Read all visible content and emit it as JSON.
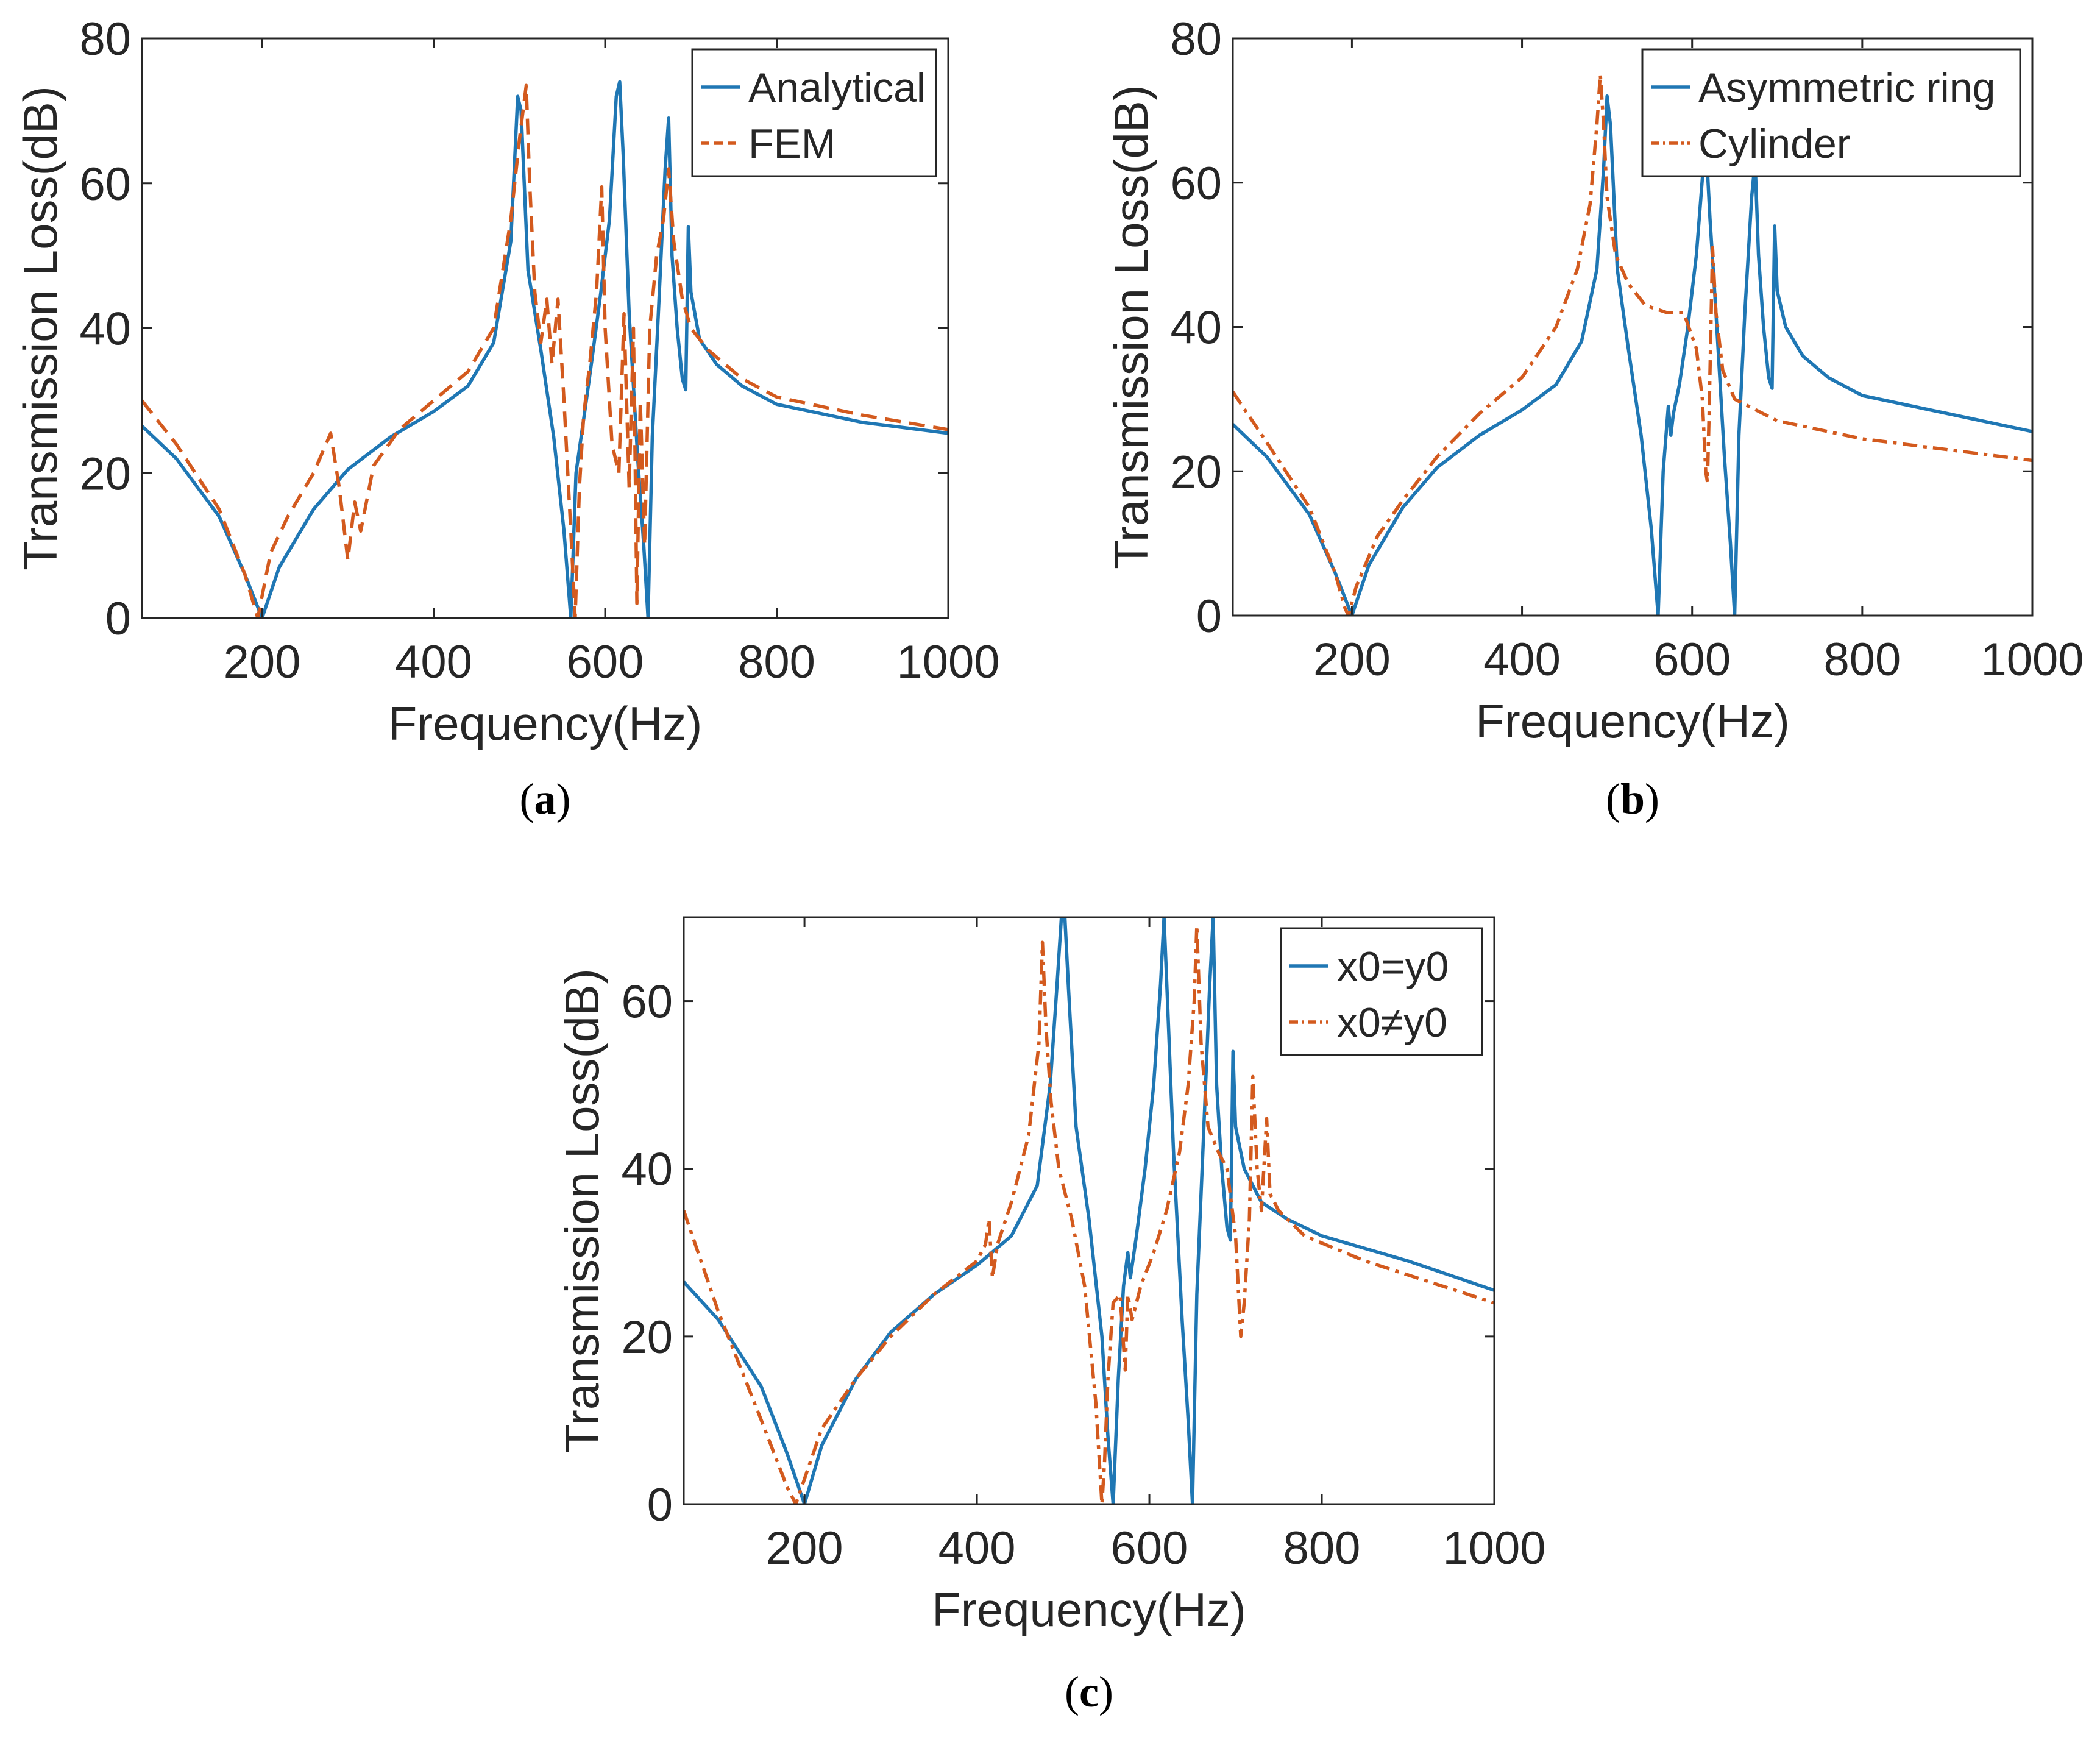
{
  "figure": {
    "panel_labels": [
      "(a)",
      "(b)",
      "(c)"
    ]
  },
  "colors": {
    "series_blue": "#1f77b4",
    "series_orange": "#d35a1e",
    "axis": "#262626"
  },
  "chart_data": [
    {
      "id": "a",
      "type": "line",
      "title": "",
      "panel_label": "(a)",
      "xlabel": "Frequency(Hz)",
      "ylabel": "Transmission Loss(dB)",
      "xlim": [
        60,
        1000
      ],
      "ylim": [
        0,
        80
      ],
      "xticks": [
        200,
        400,
        600,
        800,
        1000
      ],
      "yticks": [
        0,
        20,
        40,
        60,
        80
      ],
      "legend_position": "top-right",
      "series": [
        {
          "name": "Analytical",
          "style": "solid",
          "color": "#1f77b4",
          "x": [
            60,
            100,
            150,
            180,
            200,
            220,
            260,
            300,
            350,
            400,
            440,
            470,
            490,
            498,
            502,
            510,
            525,
            540,
            552,
            560,
            566,
            572,
            578,
            585,
            595,
            605,
            613,
            617,
            621,
            628,
            638,
            645,
            650,
            655,
            662,
            670,
            674,
            678,
            684,
            690,
            694,
            697,
            700,
            710,
            730,
            760,
            800,
            900,
            1000
          ],
          "y": [
            26.5,
            22,
            14,
            6,
            0,
            7,
            15,
            20.5,
            25,
            28.5,
            32,
            38,
            52,
            72,
            70,
            48,
            37,
            25,
            12,
            0,
            20,
            25,
            30,
            36,
            45,
            55,
            72,
            74,
            64,
            42,
            22,
            10,
            0,
            25,
            42,
            62,
            69,
            50,
            40,
            33,
            31.5,
            54,
            45,
            38.5,
            35,
            32,
            29.5,
            27,
            25.5
          ]
        },
        {
          "name": "FEM",
          "style": "dashed",
          "color": "#d35a1e",
          "x": [
            60,
            100,
            150,
            180,
            195,
            200,
            210,
            230,
            260,
            280,
            290,
            300,
            308,
            315,
            330,
            360,
            400,
            440,
            470,
            490,
            500,
            508,
            512,
            518,
            525,
            532,
            538,
            545,
            552,
            560,
            565,
            570,
            575,
            582,
            590,
            596,
            600,
            608,
            616,
            622,
            628,
            633,
            637,
            641,
            646,
            652,
            660,
            668,
            674,
            680,
            690,
            700,
            720,
            760,
            800,
            900,
            1000
          ],
          "y": [
            30,
            24,
            15,
            6,
            0,
            3,
            9,
            14,
            20,
            25.5,
            18,
            8,
            16,
            12,
            21,
            26,
            30,
            34,
            40,
            55,
            66,
            73.5,
            60,
            45,
            38,
            44,
            35,
            44,
            30,
            12,
            0,
            18,
            28,
            35,
            45,
            59.5,
            40,
            24,
            20,
            42,
            18,
            40,
            2,
            30,
            10,
            40,
            50,
            55,
            62,
            52,
            44,
            40,
            37,
            33,
            30.5,
            28,
            26
          ]
        }
      ]
    },
    {
      "id": "b",
      "type": "line",
      "title": "",
      "panel_label": "(b)",
      "xlabel": "Frequency(Hz)",
      "ylabel": "Transmission Loss(dB)",
      "xlim": [
        60,
        1000
      ],
      "ylim": [
        0,
        80
      ],
      "xticks": [
        200,
        400,
        600,
        800,
        1000
      ],
      "yticks": [
        0,
        20,
        40,
        60,
        80
      ],
      "legend_position": "top-right",
      "series": [
        {
          "name": "Asymmetric ring",
          "style": "solid",
          "color": "#1f77b4",
          "x": [
            60,
            100,
            150,
            180,
            200,
            220,
            260,
            300,
            350,
            400,
            440,
            470,
            488,
            496,
            500,
            504,
            512,
            525,
            540,
            552,
            560,
            566,
            572,
            575,
            578,
            585,
            595,
            605,
            613,
            617,
            621,
            628,
            638,
            645,
            650,
            655,
            662,
            670,
            674,
            678,
            684,
            690,
            694,
            697,
            700,
            710,
            730,
            760,
            800,
            900,
            1000
          ],
          "y": [
            26.5,
            22,
            14,
            6,
            0,
            7,
            15,
            20.5,
            25,
            28.5,
            32,
            38,
            48,
            62,
            72,
            68,
            48,
            37,
            25,
            12,
            0,
            20,
            29,
            25,
            28,
            32,
            40,
            50,
            62,
            64,
            55,
            42,
            22,
            10,
            0,
            25,
            42,
            58,
            63,
            50,
            40,
            33,
            31.5,
            54,
            45,
            40,
            36,
            33,
            30.5,
            28,
            25.5
          ]
        },
        {
          "name": "Cylinder",
          "style": "dashdot",
          "color": "#d35a1e",
          "x": [
            60,
            100,
            150,
            180,
            192,
            196,
            205,
            230,
            260,
            300,
            350,
            400,
            440,
            465,
            480,
            488,
            492,
            496,
            500,
            510,
            525,
            545,
            570,
            590,
            605,
            612,
            616,
            618,
            620,
            624,
            628,
            636,
            650,
            700,
            800,
            900,
            1000
          ],
          "y": [
            31,
            24,
            15,
            6,
            1,
            0,
            4,
            11,
            16,
            22,
            28,
            33,
            40,
            48,
            57,
            68,
            75,
            68,
            58,
            50,
            46,
            43,
            42,
            42,
            37,
            30,
            20,
            18.5,
            28,
            51,
            42,
            34,
            30,
            27,
            24.5,
            23,
            21.5
          ]
        }
      ]
    },
    {
      "id": "c",
      "type": "line",
      "title": "",
      "panel_label": "(c)",
      "xlabel": "Frequency(Hz)",
      "ylabel": "Transmission Loss(dB)",
      "xlim": [
        60,
        1000
      ],
      "ylim": [
        0,
        70
      ],
      "xticks": [
        200,
        400,
        600,
        800,
        1000
      ],
      "yticks": [
        0,
        20,
        40,
        60
      ],
      "legend_position": "top-right",
      "series": [
        {
          "name": "x0=y0",
          "style": "solid",
          "color": "#1f77b4",
          "x": [
            60,
            100,
            150,
            180,
            200,
            220,
            260,
            300,
            350,
            400,
            440,
            470,
            485,
            493,
            498,
            502,
            506,
            515,
            530,
            545,
            552,
            558,
            564,
            570,
            575,
            578,
            585,
            595,
            605,
            613,
            617,
            621,
            628,
            638,
            645,
            650,
            655,
            662,
            670,
            674,
            678,
            684,
            690,
            694,
            697,
            700,
            710,
            730,
            760,
            800,
            900,
            1000
          ],
          "y": [
            26.5,
            22,
            14,
            6,
            0,
            7,
            15,
            20.5,
            25,
            28.5,
            32,
            38,
            50,
            62,
            70,
            70,
            62,
            45,
            34,
            20,
            8,
            0,
            15,
            26,
            30,
            27,
            32,
            40,
            50,
            62,
            70,
            60,
            42,
            22,
            10,
            0,
            25,
            42,
            62,
            70,
            50,
            40,
            33,
            31.5,
            54,
            45,
            40,
            36,
            34,
            32,
            29,
            25.5
          ]
        },
        {
          "name": "x0≠y0",
          "style": "dashdot",
          "color": "#d35a1e",
          "x": [
            60,
            100,
            150,
            180,
            190,
            200,
            220,
            260,
            300,
            350,
            400,
            410,
            414,
            418,
            424,
            440,
            460,
            472,
            476,
            480,
            486,
            495,
            510,
            525,
            538,
            545,
            548,
            552,
            558,
            566,
            572,
            575,
            580,
            590,
            605,
            620,
            635,
            645,
            652,
            655,
            660,
            668,
            680,
            690,
            700,
            706,
            710,
            716,
            720,
            725,
            730,
            736,
            740,
            750,
            780,
            850,
            1000
          ],
          "y": [
            35,
            23,
            10,
            2,
            0,
            3,
            9,
            15,
            20,
            25,
            29,
            31,
            34,
            27,
            31,
            36,
            44,
            55,
            67,
            57,
            48,
            40,
            34,
            26,
            12,
            0,
            5,
            15,
            24,
            25,
            16,
            25,
            22,
            26,
            30,
            35,
            42,
            50,
            60,
            69,
            55,
            45,
            42,
            40,
            32,
            20,
            24,
            34,
            51,
            40,
            35,
            46,
            37,
            35,
            32,
            29,
            24
          ]
        }
      ]
    }
  ]
}
